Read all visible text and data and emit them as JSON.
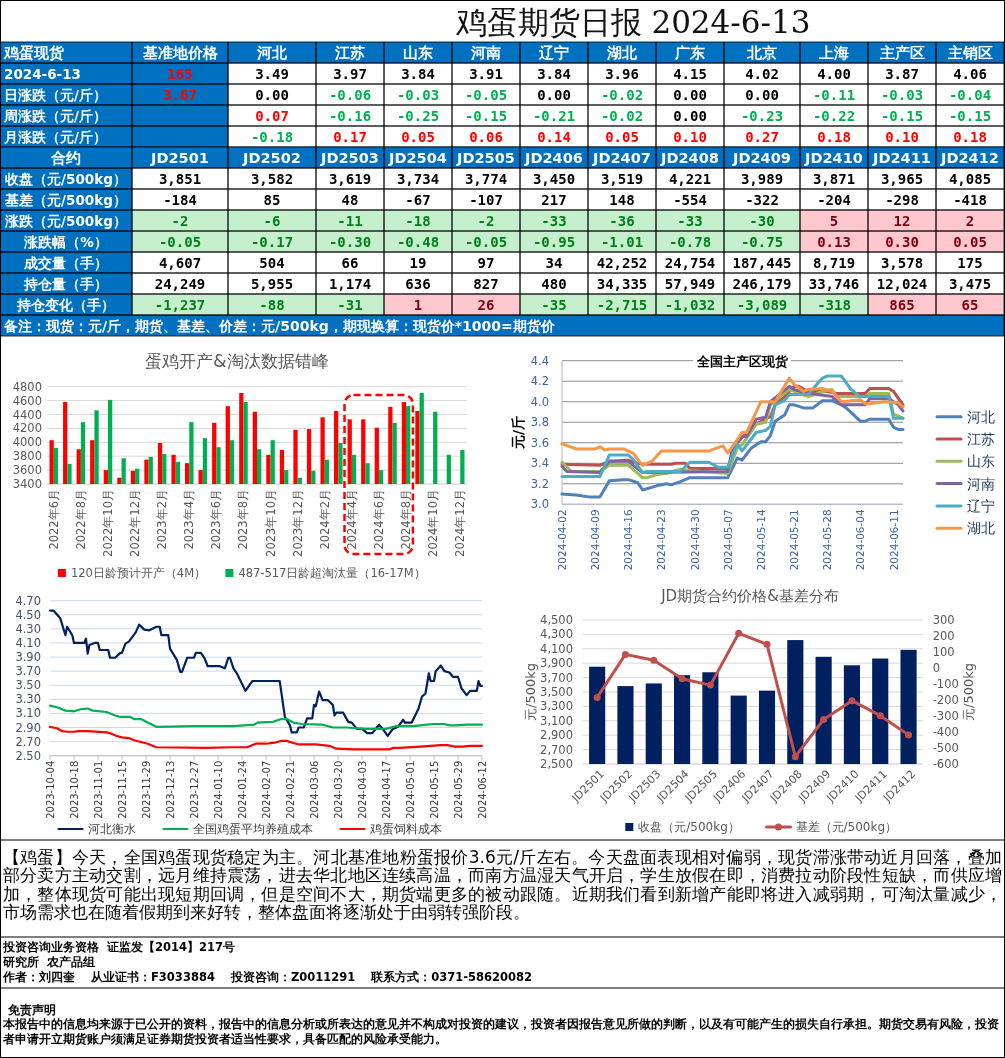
{
  "chart_data": [
    {
      "type": "other",
      "title": "鸡蛋期货日报 2024-6-13",
      "ylabel": "鸡蛋现货",
      "categories": [
        "基准地价格",
        "河北",
        "江苏",
        "山东",
        "河南",
        "辽宁",
        "湖北",
        "广东",
        "北京",
        "上海",
        "主产区",
        "主销区"
      ],
      "series": [
        {
          "name": "2024-6-13",
          "color": "#ff0000",
          "values": [
            165,
            3.49,
            3.97,
            3.84,
            3.91,
            3.84,
            3.96,
            4.15,
            4.02,
            4,
            3.87,
            4.06
          ],
          "value_labels": [
            "165",
            "3.49",
            "3.97",
            "3.84",
            "3.91",
            "3.84",
            "3.96",
            "4.15",
            "4.02",
            "4.00",
            "3.87",
            "4.06"
          ],
          "colors": [
            "#0070c0",
            "#000000",
            "#000000",
            "#000000",
            "#000000",
            "#000000",
            "#000000",
            "#000000",
            "#000000",
            "#000000",
            "#000000",
            "#000000"
          ]
        },
        {
          "name": "日涨跌（元/斤）",
          "color": "#ff0000",
          "values": [
            3.67,
            0,
            -0.06,
            -0.03,
            -0.05,
            0,
            -0.02,
            0,
            0,
            -0.11,
            -0.03,
            -0.04
          ],
          "value_labels": [
            "3.67",
            "0.00",
            "-0.06",
            "-0.03",
            "-0.05",
            "0.00",
            "-0.02",
            "0.00",
            "0.00",
            "-0.11",
            "-0.03",
            "-0.04"
          ],
          "colors": [
            "#0070c0",
            "#000000",
            "#00b050",
            "#00b050",
            "#00b050",
            "#000000",
            "#00b050",
            "#000000",
            "#000000",
            "#00b050",
            "#00b050",
            "#00b050"
          ]
        },
        {
          "name": "周涨跌（元/斤）",
          "values": [
            null,
            0.07,
            -0.16,
            -0.25,
            -0.15,
            -0.21,
            -0.02,
            0,
            -0.23,
            -0.22,
            -0.15,
            -0.15
          ],
          "value_labels": [
            null,
            "0.07",
            "-0.16",
            "-0.25",
            "-0.15",
            "-0.21",
            "-0.02",
            "0.00",
            "-0.23",
            "-0.22",
            "-0.15",
            "-0.15"
          ],
          "colors": [
            null,
            "#ff0000",
            "#00b050",
            "#00b050",
            "#00b050",
            "#00b050",
            "#00b050",
            "#000000",
            "#00b050",
            "#00b050",
            "#00b050",
            "#00b050"
          ]
        },
        {
          "name": "月涨跌（元/斤）",
          "values": [
            null,
            -0.18,
            0.17,
            0.05,
            0.06,
            0.14,
            0.05,
            0.1,
            0.27,
            0.18,
            0.1,
            0.18
          ],
          "value_labels": [
            null,
            "-0.18",
            "0.17",
            "0.05",
            "0.06",
            "0.14",
            "0.05",
            "0.10",
            "0.27",
            "0.18",
            "0.10",
            "0.18"
          ],
          "colors": [
            null,
            "#00b050",
            "#ff0000",
            "#ff0000",
            "#ff0000",
            "#ff0000",
            "#ff0000",
            "#ff0000",
            "#ff0000",
            "#ff0000",
            "#ff0000",
            "#ff0000"
          ]
        }
      ]
    },
    {
      "type": "other",
      "ylabel": "合约",
      "categories": [
        "JD2501",
        "JD2502",
        "JD2503",
        "JD2504",
        "JD2505",
        "JD2406",
        "JD2407",
        "JD2408",
        "JD2409",
        "JD2410",
        "JD2411",
        "JD2412"
      ],
      "series": [
        {
          "name": "收盘（元/500kg）",
          "values": [
            3851,
            3582,
            3619,
            3734,
            3774,
            3450,
            3519,
            4221,
            3989,
            3871,
            3965,
            4085
          ],
          "value_labels": [
            "3,851",
            "3,582",
            "3,619",
            "3,734",
            "3,774",
            "3,450",
            "3,519",
            "4,221",
            "3,989",
            "3,871",
            "3,965",
            "4,085"
          ],
          "colors": [
            "#000000",
            "#000000",
            "#000000",
            "#000000",
            "#000000",
            "#000000",
            "#000000",
            "#000000",
            "#000000",
            "#000000",
            "#000000",
            "#000000"
          ]
        },
        {
          "name": "基差（元/500kg）",
          "values": [
            -184,
            85,
            48,
            -67,
            -107,
            217,
            148,
            -554,
            -322,
            -204,
            -298,
            -418
          ],
          "value_labels": [
            "-184",
            "85",
            "48",
            "-67",
            "-107",
            "217",
            "148",
            "-554",
            "-322",
            "-204",
            "-298",
            "-418"
          ],
          "colors": [
            "#000000",
            "#000000",
            "#000000",
            "#000000",
            "#000000",
            "#000000",
            "#000000",
            "#000000",
            "#000000",
            "#000000",
            "#000000",
            "#000000"
          ]
        },
        {
          "name": "涨跌（元/500kg）",
          "values": [
            -2,
            -6,
            -11,
            -18,
            -2,
            -33,
            -36,
            -33,
            -30,
            5,
            12,
            2
          ],
          "value_labels": [
            "-2",
            "-6",
            "-11",
            "-18",
            "-2",
            "-33",
            "-36",
            "-33",
            "-30",
            "5",
            "12",
            "2"
          ],
          "colors": [
            "#c6efce",
            "#c6efce",
            "#c6efce",
            "#c6efce",
            "#c6efce",
            "#c6efce",
            "#c6efce",
            "#c6efce",
            "#c6efce",
            "#ffc7ce",
            "#ffc7ce",
            "#ffc7ce"
          ]
        },
        {
          "name": "涨跌幅（%）",
          "values": [
            -0.05,
            -0.17,
            -0.3,
            -0.48,
            -0.05,
            -0.95,
            -1.01,
            -0.78,
            -0.75,
            0.13,
            0.3,
            0.05
          ],
          "value_labels": [
            "-0.05",
            "-0.17",
            "-0.30",
            "-0.48",
            "-0.05",
            "-0.95",
            "-1.01",
            "-0.78",
            "-0.75",
            "0.13",
            "0.30",
            "0.05"
          ],
          "colors": [
            "#c6efce",
            "#c6efce",
            "#c6efce",
            "#c6efce",
            "#c6efce",
            "#c6efce",
            "#c6efce",
            "#c6efce",
            "#c6efce",
            "#ffc7ce",
            "#ffc7ce",
            "#ffc7ce"
          ]
        },
        {
          "name": "成交量（手）",
          "values": [
            4607,
            504,
            66,
            19,
            97,
            34,
            42252,
            24754,
            187445,
            8719,
            3578,
            175
          ],
          "value_labels": [
            "4,607",
            "504",
            "66",
            "19",
            "97",
            "34",
            "42,252",
            "24,754",
            "187,445",
            "8,719",
            "3,578",
            "175"
          ],
          "colors": [
            "#000000",
            "#000000",
            "#000000",
            "#000000",
            "#000000",
            "#000000",
            "#000000",
            "#000000",
            "#000000",
            "#000000",
            "#000000",
            "#000000"
          ]
        },
        {
          "name": "持仓量（手）",
          "values": [
            24249,
            5955,
            1174,
            636,
            827,
            480,
            34335,
            57949,
            246179,
            33746,
            12024,
            3475
          ],
          "value_labels": [
            "24,249",
            "5,955",
            "1,174",
            "636",
            "827",
            "480",
            "34,335",
            "57,949",
            "246,179",
            "33,746",
            "12,024",
            "3,475"
          ],
          "colors": [
            "#000000",
            "#000000",
            "#000000",
            "#000000",
            "#000000",
            "#000000",
            "#000000",
            "#000000",
            "#000000",
            "#000000",
            "#000000",
            "#000000"
          ]
        },
        {
          "name": "持仓变化（手）",
          "values": [
            -1237,
            -88,
            -31,
            1,
            26,
            -35,
            -2715,
            -1032,
            -3089,
            -318,
            865,
            65
          ],
          "value_labels": [
            "-1,237",
            "-88",
            "-31",
            "1",
            "26",
            "-35",
            "-2,715",
            "-1,032",
            "-3,089",
            "-318",
            "865",
            "65"
          ],
          "colors": [
            "#c6efce",
            "#c6efce",
            "#c6efce",
            "#ffc7ce",
            "#ffc7ce",
            "#c6efce",
            "#c6efce",
            "#c6efce",
            "#c6efce",
            "#c6efce",
            "#ffc7ce",
            "#ffc7ce"
          ]
        }
      ],
      "annotations": [
        "备注：现货：元/斤，期货、基差、价差：元/500kg，期现换算：现货价*1000=期货价"
      ]
    },
    {
      "type": "bar",
      "title": "蛋鸡开产&淘汰数据错峰",
      "categories": [
        "2022年6月",
        null,
        "2022年8月",
        null,
        "2022年10月",
        null,
        "2022年12月",
        null,
        "2023年2月",
        null,
        "2023年4月",
        null,
        "2023年6月",
        null,
        "2023年8月",
        null,
        "2023年10月",
        null,
        "2023年12月",
        null,
        "2024年2月",
        null,
        "2024年4月",
        null,
        "2024年6月",
        null,
        "2024年8月",
        null,
        "2024年10月",
        null,
        "2024年12月"
      ],
      "series": [
        {
          "name": "120日龄预计开产（4M）",
          "color": "#ff0000",
          "values": [
            4030,
            4580,
            3900,
            4030,
            3600,
            3490,
            3590,
            3750,
            3990,
            3820,
            3700,
            3600,
            4280,
            4520,
            4710,
            4440,
            3820,
            3890,
            4180,
            4190,
            4360,
            4450,
            4330,
            4330,
            4210,
            4510,
            4580,
            4450,
            null,
            null,
            null
          ]
        },
        {
          "name": "487-517日龄超淘汰量（16-17M）",
          "color": "#00b050",
          "values": [
            3920,
            3690,
            4290,
            4460,
            4610,
            3770,
            3620,
            3790,
            3830,
            3720,
            4290,
            4060,
            3930,
            4030,
            4580,
            3900,
            4030,
            3600,
            3490,
            3590,
            3750,
            3990,
            3820,
            3700,
            3600,
            4280,
            4520,
            4710,
            4440,
            3820,
            3890
          ]
        }
      ],
      "ylim": [
        3400,
        4800
      ],
      "yticks": [
        3400,
        3600,
        3800,
        4000,
        4200,
        4400,
        4600,
        4800
      ],
      "grid": "y",
      "legend": "bottom"
    },
    {
      "type": "line",
      "title": "全国主产区现货",
      "ylabel": "元/斤",
      "xlim": [
        "2024-04-02",
        "2024-06-13"
      ],
      "xticks": [
        "2024-04-02",
        "2024-04-09",
        "2024-04-16",
        "2024-04-23",
        "2024-04-30",
        "2024-05-07",
        "2024-05-14",
        "2024-05-21",
        "2024-05-28",
        "2024-06-04",
        "2024-06-11"
      ],
      "ylim": [
        3,
        4.4
      ],
      "yticks": [
        {
          "value": 3,
          "label": "3.0"
        },
        3.2,
        3.4,
        3.6,
        3.8,
        {
          "value": 4,
          "label": "4.0"
        },
        4.2,
        4.4
      ],
      "grid": "y",
      "legend": "right",
      "series": [
        {
          "name": "河北",
          "color": "#4f81bd",
          "x": [
            "2024-04-02",
            "2024-04-05",
            "2024-04-08",
            "2024-04-10",
            "2024-04-12",
            "2024-04-15",
            "2024-04-16",
            "2024-04-18",
            "2024-04-19",
            "2024-04-22",
            "2024-04-24",
            "2024-04-25",
            "2024-04-27",
            "2024-04-29",
            "2024-05-07",
            "2024-05-09",
            "2024-05-10",
            "2024-05-12",
            "2024-05-14",
            "2024-05-15",
            "2024-05-16",
            "2024-05-17",
            "2024-05-19",
            "2024-05-20",
            "2024-05-21",
            "2024-05-23",
            "2024-05-25",
            "2024-05-27",
            "2024-05-29",
            "2024-05-31",
            "2024-06-01",
            "2024-06-04",
            "2024-06-05",
            "2024-06-06",
            "2024-06-10",
            "2024-06-11",
            "2024-06-12",
            "2024-06-13"
          ],
          "values": [
            3.1,
            3.09,
            3.07,
            3.07,
            3.23,
            3.24,
            3.24,
            3.21,
            3.14,
            3.18,
            3.2,
            3.19,
            3.22,
            3.26,
            3.26,
            3.45,
            3.43,
            3.55,
            3.61,
            3.61,
            3.67,
            3.81,
            3.87,
            3.97,
            3.97,
            3.94,
            3.94,
            4.01,
            4.01,
            3.97,
            3.94,
            3.81,
            3.81,
            3.83,
            3.83,
            3.75,
            3.73,
            3.73
          ]
        },
        {
          "name": "江苏",
          "color": "#c0504d",
          "x": [
            "2024-04-02",
            "2024-04-10",
            "2024-04-12",
            "2024-04-16",
            "2024-04-17",
            "2024-04-19",
            "2024-04-25",
            "2024-04-26",
            "2024-04-28",
            "2024-04-29",
            "2024-05-07",
            "2024-05-09",
            "2024-05-10",
            "2024-05-13",
            "2024-05-15",
            "2024-05-16",
            "2024-05-17",
            "2024-05-19",
            "2024-05-21",
            "2024-05-22",
            "2024-05-24",
            "2024-05-28",
            "2024-05-30",
            "2024-06-05",
            "2024-06-06",
            "2024-06-10",
            "2024-06-11",
            "2024-06-13"
          ],
          "values": [
            3.39,
            3.38,
            3.42,
            3.43,
            3.41,
            3.39,
            3.39,
            3.4,
            3.4,
            3.35,
            3.35,
            3.6,
            3.65,
            3.78,
            3.84,
            3.85,
            3.97,
            4.05,
            4.15,
            4.15,
            4.1,
            4.1,
            4.08,
            4.08,
            4.13,
            4.13,
            4.1,
            3.97
          ]
        },
        {
          "name": "山东",
          "color": "#9bbb59",
          "x": [
            "2024-04-02",
            "2024-04-04",
            "2024-04-10",
            "2024-04-12",
            "2024-04-16",
            "2024-04-17",
            "2024-04-19",
            "2024-04-20",
            "2024-04-22",
            "2024-04-24",
            "2024-04-26",
            "2024-04-27",
            "2024-04-29",
            "2024-05-07",
            "2024-05-09",
            "2024-05-10",
            "2024-05-13",
            "2024-05-15",
            "2024-05-16",
            "2024-05-20",
            "2024-05-21",
            "2024-05-24",
            "2024-05-27",
            "2024-05-29",
            "2024-05-30",
            "2024-06-05",
            "2024-06-06",
            "2024-06-10",
            "2024-06-11",
            "2024-06-13"
          ],
          "values": [
            3.41,
            3.32,
            3.32,
            3.38,
            3.38,
            3.34,
            3.26,
            3.26,
            3.29,
            3.3,
            3.33,
            3.34,
            3.33,
            3.3,
            3.55,
            3.58,
            3.78,
            3.8,
            3.97,
            4.12,
            4.1,
            4.05,
            4.1,
            4.12,
            4.05,
            4.05,
            4.08,
            4.08,
            3.88,
            3.84
          ]
        },
        {
          "name": "河南",
          "color": "#8064a2",
          "x": [
            "2024-04-02",
            "2024-04-03",
            "2024-04-10",
            "2024-04-12",
            "2024-04-16",
            "2024-04-17",
            "2024-04-19",
            "2024-04-20",
            "2024-05-07",
            "2024-05-08",
            "2024-05-10",
            "2024-05-11",
            "2024-05-13",
            "2024-05-15",
            "2024-05-16",
            "2024-05-20",
            "2024-05-21",
            "2024-05-23",
            "2024-05-26",
            "2024-05-29",
            "2024-05-31",
            "2024-06-05",
            "2024-06-06",
            "2024-06-10",
            "2024-06-12",
            "2024-06-13"
          ],
          "values": [
            3.37,
            3.32,
            3.31,
            3.42,
            3.42,
            3.38,
            3.31,
            3.31,
            3.32,
            3.55,
            3.66,
            3.66,
            3.83,
            3.85,
            4.0,
            4.15,
            4.12,
            4.09,
            4.07,
            4.05,
            3.97,
            3.97,
            4.03,
            4.03,
            3.97,
            3.91
          ]
        },
        {
          "name": "辽宁",
          "color": "#4bacc6",
          "x": [
            "2024-04-02",
            "2024-04-10",
            "2024-04-12",
            "2024-04-16",
            "2024-04-17",
            "2024-04-19",
            "2024-04-20",
            "2024-04-27",
            "2024-04-29",
            "2024-05-03",
            "2024-05-05",
            "2024-05-07",
            "2024-05-09",
            "2024-05-10",
            "2024-05-13",
            "2024-05-15",
            "2024-05-16",
            "2024-05-17",
            "2024-05-19",
            "2024-05-20",
            "2024-05-24",
            "2024-05-26",
            "2024-05-27",
            "2024-05-28",
            "2024-05-31",
            "2024-06-02",
            "2024-06-04",
            "2024-06-10",
            "2024-06-11",
            "2024-06-13"
          ],
          "values": [
            3.27,
            3.27,
            3.48,
            3.48,
            3.44,
            3.31,
            3.32,
            3.32,
            3.41,
            3.41,
            3.36,
            3.36,
            3.59,
            3.52,
            3.7,
            3.72,
            3.76,
            3.97,
            4.01,
            4.07,
            4.07,
            4.18,
            4.23,
            4.25,
            4.25,
            4.12,
            4.05,
            4.05,
            3.84,
            3.84
          ]
        },
        {
          "name": "湖北",
          "color": "#f79646",
          "x": [
            "2024-04-02",
            "2024-04-05",
            "2024-04-09",
            "2024-04-10",
            "2024-04-11",
            "2024-04-12",
            "2024-04-15",
            "2024-04-17",
            "2024-04-19",
            "2024-04-21",
            "2024-04-23",
            "2024-05-03",
            "2024-05-06",
            "2024-05-07",
            "2024-05-09",
            "2024-05-10",
            "2024-05-11",
            "2024-05-13",
            "2024-05-14",
            "2024-05-17",
            "2024-05-20",
            "2024-05-21",
            "2024-05-23",
            "2024-05-24",
            "2024-05-27",
            "2024-05-29",
            "2024-05-31",
            "2024-06-02",
            "2024-06-04",
            "2024-06-05",
            "2024-06-06",
            "2024-06-09",
            "2024-06-12",
            "2024-06-13"
          ],
          "values": [
            3.59,
            3.54,
            3.54,
            3.56,
            3.53,
            3.54,
            3.54,
            3.5,
            3.38,
            3.42,
            3.52,
            3.52,
            3.57,
            3.5,
            3.63,
            3.7,
            3.7,
            3.9,
            4.0,
            4.0,
            4.23,
            4.17,
            4.1,
            4.12,
            4.13,
            4.1,
            4.0,
            4.01,
            4.02,
            3.98,
            3.98,
            4.0,
            3.99,
            3.95
          ]
        }
      ]
    },
    {
      "type": "line",
      "xlim": [
        "2023-10-04",
        "2024-06-12"
      ],
      "xticks": [
        "2023-10-04",
        "2023-10-18",
        "2023-11-01",
        "2023-11-15",
        "2023-11-29",
        "2023-12-13",
        "2023-12-27",
        "2024-01-10",
        "2024-01-24",
        "2024-02-07",
        "2024-02-21",
        "2024-03-06",
        "2024-03-20",
        "2024-04-03",
        "2024-04-17",
        "2024-05-01",
        "2024-05-15",
        "2024-05-29",
        "2024-06-12"
      ],
      "ylim": [
        2.5,
        4.7
      ],
      "yticks": [
        {
          "value": 2.5,
          "label": "2.50"
        },
        {
          "value": 2.7,
          "label": "2.70"
        },
        {
          "value": 2.9,
          "label": "2.90"
        },
        {
          "value": 3.1,
          "label": "3.10"
        },
        {
          "value": 3.3,
          "label": "3.30"
        },
        {
          "value": 3.5,
          "label": "3.50"
        },
        {
          "value": 3.7,
          "label": "3.70"
        },
        {
          "value": 3.9,
          "label": "3.90"
        },
        {
          "value": 4.1,
          "label": "4.10"
        },
        {
          "value": 4.3,
          "label": "4.30"
        },
        {
          "value": 4.5,
          "label": "4.50"
        },
        {
          "value": 4.7,
          "label": "4.70"
        }
      ],
      "grid": "y",
      "legend": "bottom",
      "series": [
        {
          "name": "河北衡水",
          "color": "#002060",
          "x": [
            "2023-10-04",
            "2023-10-06",
            "2023-10-10",
            "2023-10-13",
            "2023-10-14",
            "2023-10-17",
            "2023-10-18",
            "2023-10-24",
            "2023-10-25",
            "2023-10-26",
            "2023-10-27",
            "2023-10-30",
            "2023-11-01",
            "2023-11-02",
            "2023-11-07",
            "2023-11-08",
            "2023-11-11",
            "2023-11-14",
            "2023-11-15",
            "2023-11-17",
            "2023-11-19",
            "2023-11-23",
            "2023-11-25",
            "2023-11-28",
            "2023-12-01",
            "2023-12-05",
            "2023-12-07",
            "2023-12-08",
            "2023-12-12",
            "2023-12-13",
            "2023-12-17",
            "2023-12-19",
            "2023-12-20",
            "2023-12-23",
            "2023-12-27",
            "2023-12-28",
            "2023-12-31",
            "2024-01-02",
            "2024-01-04",
            "2024-01-11",
            "2024-01-14",
            "2024-01-16",
            "2024-01-17",
            "2024-01-19",
            "2024-01-21",
            "2024-01-23",
            "2024-01-26",
            "2024-01-30",
            "2024-02-15",
            "2024-02-18",
            "2024-02-21",
            "2024-02-22",
            "2024-02-25",
            "2024-02-26",
            "2024-02-29",
            "2024-03-02",
            "2024-03-05",
            "2024-03-06",
            "2024-03-07",
            "2024-03-09",
            "2024-03-11",
            "2024-03-14",
            "2024-03-17",
            "2024-03-18",
            "2024-03-19",
            "2024-03-23",
            "2024-03-26",
            "2024-03-28",
            "2024-03-31",
            "2024-04-03",
            "2024-04-06",
            "2024-04-09",
            "2024-04-13",
            "2024-04-15",
            "2024-04-18",
            "2024-04-21",
            "2024-04-24",
            "2024-04-27",
            "2024-04-28",
            "2024-05-02",
            "2024-05-05",
            "2024-05-06",
            "2024-05-08",
            "2024-05-10",
            "2024-05-12",
            "2024-05-13",
            "2024-05-15",
            "2024-05-16",
            "2024-05-19",
            "2024-05-21",
            "2024-05-24",
            "2024-05-26",
            "2024-05-29",
            "2024-05-31",
            "2024-06-03",
            "2024-06-05",
            "2024-06-09",
            "2024-06-10",
            "2024-06-11",
            "2024-06-12"
          ],
          "values": [
            4.56,
            4.56,
            4.45,
            4.21,
            4.33,
            4.21,
            4.1,
            4.1,
            4.16,
            3.95,
            4.07,
            4.1,
            4.1,
            4.0,
            4.0,
            3.89,
            3.89,
            3.96,
            3.96,
            4.09,
            4.12,
            4.25,
            4.36,
            4.29,
            4.28,
            4.33,
            4.33,
            4.21,
            4.21,
            4.02,
            3.86,
            3.69,
            3.69,
            3.89,
            3.89,
            3.96,
            3.96,
            3.89,
            3.77,
            3.77,
            3.74,
            3.89,
            3.89,
            3.74,
            3.67,
            3.57,
            3.42,
            3.56,
            3.56,
            3.05,
            2.93,
            2.83,
            2.83,
            2.9,
            2.9,
            3.03,
            3.03,
            3.22,
            3.2,
            3.41,
            3.29,
            3.29,
            3.22,
            3.07,
            3.11,
            3.11,
            2.98,
            2.97,
            2.88,
            2.88,
            2.82,
            2.82,
            2.94,
            2.88,
            2.78,
            2.88,
            2.91,
            3.01,
            2.97,
            2.97,
            3.12,
            3.17,
            3.34,
            3.38,
            3.67,
            3.56,
            3.56,
            3.7,
            3.78,
            3.7,
            3.68,
            3.62,
            3.62,
            3.46,
            3.36,
            3.42,
            3.42,
            3.56,
            3.49,
            3.49
          ]
        },
        {
          "name": "全国鸡蛋平均养殖成本",
          "color": "#00b050",
          "x": [
            "2023-10-04",
            "2023-10-09",
            "2023-10-13",
            "2023-10-18",
            "2023-10-22",
            "2023-10-26",
            "2023-10-29",
            "2023-11-06",
            "2023-11-11",
            "2023-11-14",
            "2023-11-20",
            "2023-11-22",
            "2023-11-26",
            "2023-11-30",
            "2023-12-05",
            "2023-12-27",
            "2024-01-19",
            "2024-01-31",
            "2024-02-02",
            "2024-02-11",
            "2024-02-16",
            "2024-02-19",
            "2024-02-23",
            "2024-02-28",
            "2024-03-11",
            "2024-03-17",
            "2024-03-25",
            "2024-04-05",
            "2024-04-17",
            "2024-04-23",
            "2024-05-03",
            "2024-05-11",
            "2024-05-15",
            "2024-05-21",
            "2024-05-24",
            "2024-05-28",
            "2024-06-03",
            "2024-06-12"
          ],
          "values": [
            3.21,
            3.18,
            3.14,
            3.13,
            3.16,
            3.17,
            3.14,
            3.12,
            3.07,
            3.05,
            3.05,
            3.02,
            3.02,
            2.97,
            2.91,
            2.92,
            2.92,
            2.94,
            2.97,
            2.98,
            3.02,
            3.02,
            2.97,
            2.95,
            2.94,
            2.9,
            2.9,
            2.88,
            2.88,
            2.92,
            2.92,
            2.94,
            2.95,
            2.95,
            2.93,
            2.93,
            2.94,
            2.94
          ]
        },
        {
          "name": "鸡蛋饲料成本",
          "color": "#ff0000",
          "x": [
            "2023-10-04",
            "2023-10-08",
            "2023-10-11",
            "2023-10-14",
            "2023-10-18",
            "2023-10-21",
            "2023-10-26",
            "2023-11-06",
            "2023-11-08",
            "2023-11-12",
            "2023-11-15",
            "2023-11-19",
            "2023-11-22",
            "2023-11-30",
            "2023-12-05",
            "2024-01-03",
            "2024-01-19",
            "2024-01-27",
            "2024-02-01",
            "2024-02-07",
            "2024-02-13",
            "2024-02-16",
            "2024-02-19",
            "2024-02-23",
            "2024-02-26",
            "2024-03-07",
            "2024-03-15",
            "2024-03-19",
            "2024-03-29",
            "2024-04-19",
            "2024-04-21",
            "2024-04-25",
            "2024-05-07",
            "2024-05-13",
            "2024-05-19",
            "2024-05-23",
            "2024-05-27",
            "2024-06-01",
            "2024-06-05",
            "2024-06-12"
          ],
          "values": [
            2.91,
            2.89,
            2.85,
            2.84,
            2.84,
            2.85,
            2.85,
            2.83,
            2.82,
            2.78,
            2.76,
            2.75,
            2.72,
            2.67,
            2.62,
            2.61,
            2.62,
            2.62,
            2.67,
            2.67,
            2.69,
            2.71,
            2.71,
            2.68,
            2.66,
            2.66,
            2.64,
            2.6,
            2.59,
            2.59,
            2.61,
            2.61,
            2.63,
            2.64,
            2.65,
            2.65,
            2.63,
            2.63,
            2.64,
            2.64
          ]
        }
      ]
    },
    {
      "type": "bar",
      "title": "JD期货合约价格&基差分布",
      "ylabel": "元/500kg",
      "y2label": "元/500kg",
      "categories": [
        "JD2501",
        "JD2502",
        "JD2503",
        "JD2504",
        "JD2505",
        "JD2406",
        "JD2407",
        "JD2408",
        "JD2409",
        "JD2410",
        "JD2411",
        "JD2412"
      ],
      "ylim": [
        2500,
        4500
      ],
      "yticks": [
        {
          "value": 2500,
          "label": "2,500"
        },
        {
          "value": 2700,
          "label": "2,700"
        },
        {
          "value": 2900,
          "label": "2,900"
        },
        {
          "value": 3100,
          "label": "3,100"
        },
        {
          "value": 3300,
          "label": "3,300"
        },
        {
          "value": 3500,
          "label": "3,500"
        },
        {
          "value": 3700,
          "label": "3,700"
        },
        {
          "value": 3900,
          "label": "3,900"
        },
        {
          "value": 4100,
          "label": "4,100"
        },
        {
          "value": 4300,
          "label": "4,300"
        },
        {
          "value": 4500,
          "label": "4,500"
        }
      ],
      "y2lim": [
        -600,
        300
      ],
      "y2ticks": [
        -600,
        -500,
        -400,
        -300,
        -200,
        -100,
        0,
        100,
        200,
        300
      ],
      "grid": "y",
      "legend": "bottom",
      "series": [
        {
          "name": "收盘（元/500kg）",
          "color": "#002060",
          "values": [
            3851,
            3582,
            3619,
            3734,
            3774,
            3450,
            3519,
            4221,
            3989,
            3871,
            3965,
            4085
          ]
        },
        {
          "name": "基差（元/500kg）",
          "type": "line",
          "axis": "y2",
          "color": "#c0504d",
          "marker": "circle",
          "values": [
            -184,
            85,
            48,
            -67,
            -107,
            217,
            148,
            -554,
            -322,
            -204,
            -298,
            -418
          ]
        }
      ]
    },
    {
      "type": "other",
      "annotations": [
        "【鸡蛋】今天，全国鸡蛋现货稳定为主。河北基准地粉蛋报价3.6元/斤左右。今天盘面表现相对偏弱，现货滞涨带动近月回落，叠加部分卖方主动交割，远月维持震荡，进去华北地区连续高温，而南方温湿天气开启，学生放假在即，消费拉动阶段性短缺，而供应增加，整体现货可能出现短期回调，但是空间不大，期货端更多的被动跟随。近期我们看到新增产能即将进入减弱期，可淘汰量减少，市场需求也在随着假期到来好转，整体盘面将逐渐处于由弱转强阶段。",
        "投资咨询业务资格  证监发【2014】217号",
        "研究所  农产品组",
        "作者：刘四奎    从业证书：F3033884    投资咨询：Z0011291    联系方式：0371-58620082",
        "免责声明",
        "本报告中的信息均来源于已公开的资料，报告中的信息分析或所表达的意见并不构成对投资的建议，投资者因报告意见所做的判断，以及有可能产生的损失自行承担。期货交易有风险，投资者申请开立期货账户须满足证券期货投资者适当性要求，具备匹配的风险承受能力。"
      ]
    }
  ]
}
